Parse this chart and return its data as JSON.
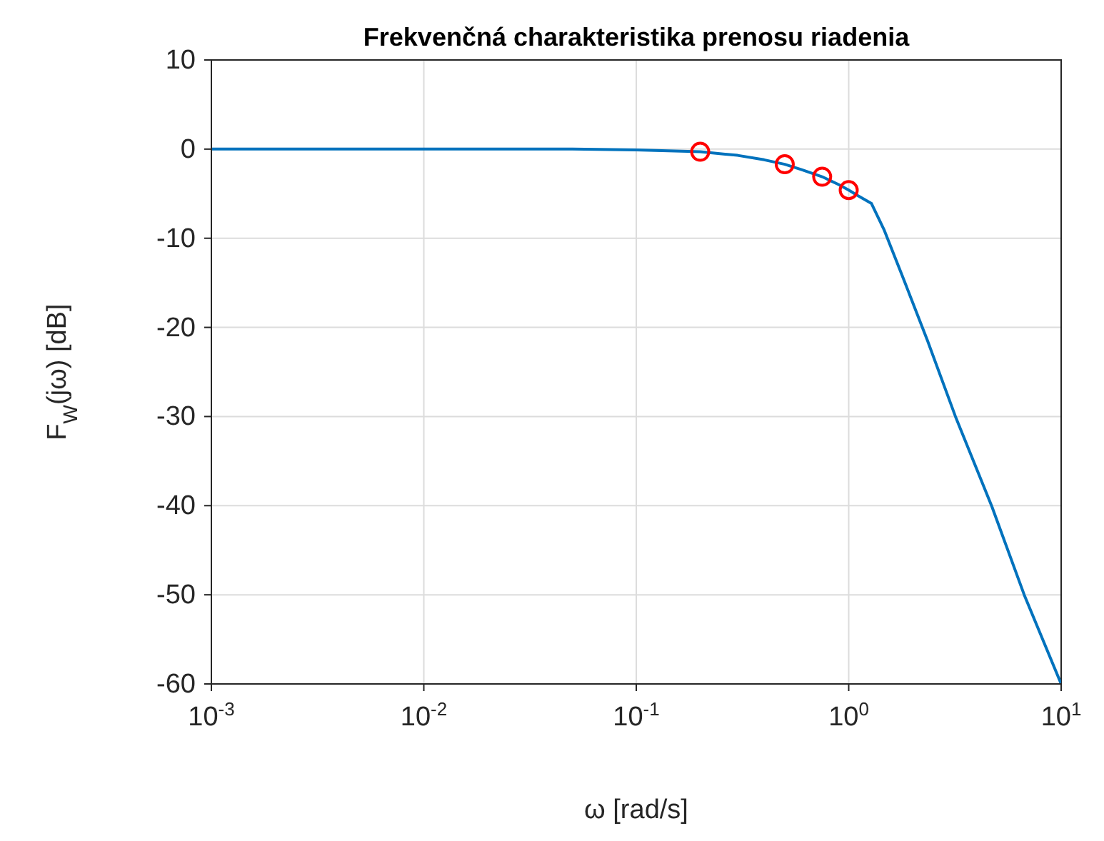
{
  "chart_data": {
    "type": "line",
    "title": "Frekvenčná charakteristika prenosu riadenia",
    "xlabel": "ω [rad/s]",
    "ylabel": "F$_{W}$(jω) [dB]",
    "log": "x",
    "grid": true,
    "xlim": [
      0.001,
      10
    ],
    "ylim": [
      -60,
      10
    ],
    "xticks": [
      {
        "value": 0.001,
        "label": "10$^{-3}$"
      },
      {
        "value": 0.01,
        "label": "10$^{-2}$"
      },
      {
        "value": 0.1,
        "label": "10$^{-1}$"
      },
      {
        "value": 1,
        "label": "10$^{0}$"
      },
      {
        "value": 10,
        "label": "10$^{1}$"
      }
    ],
    "yticks": [
      -60,
      -50,
      -40,
      -30,
      -20,
      -10,
      0,
      10
    ],
    "series": [
      {
        "color": "#0072bd",
        "marker": "none",
        "x": [
          0.001,
          0.01,
          0.05,
          0.1,
          0.2,
          0.3,
          0.4,
          0.5,
          0.6,
          0.75,
          0.9,
          1.0,
          1.1,
          1.28,
          1.47,
          1.78,
          2.35,
          3.18,
          4.72,
          6.7,
          10
        ],
        "values": [
          0,
          0,
          0,
          -0.1,
          -0.3,
          -0.7,
          -1.2,
          -1.7,
          -2.3,
          -3.1,
          -4.0,
          -4.6,
          -5.2,
          -6.1,
          -9.1,
          -14.1,
          -21.5,
          -30,
          -40.1,
          -50,
          -60
        ]
      },
      {
        "type": "scatter",
        "color": "#ff0000",
        "marker": "circle",
        "x": [
          0.2,
          0.5,
          0.75,
          1.0
        ],
        "values": [
          -0.3,
          -1.7,
          -3.1,
          -4.6
        ]
      }
    ]
  }
}
